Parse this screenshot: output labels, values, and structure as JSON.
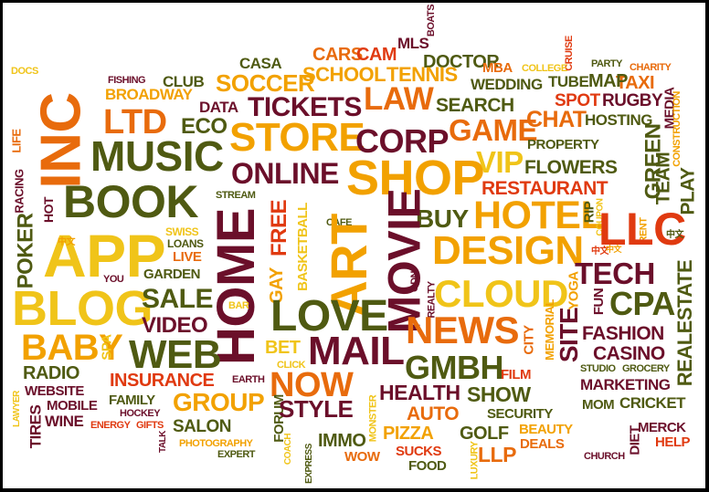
{
  "colors": {
    "orange": "#f2a100",
    "maroon": "#6b0f2a",
    "olive": "#4f5a12",
    "red_orange": "#e03a10",
    "yellow": "#f0c419",
    "dark_orange": "#e86b0c",
    "frame": "#000000",
    "background": "#ffffff"
  },
  "words": {
    "docs": "DOCS",
    "fishing": "FISHING",
    "broadway": "BROADWAY",
    "club": "CLUB",
    "casa": "CASA",
    "cars": "CARS",
    "cam": "CAM",
    "mls": "MLS",
    "boats": "BOATS",
    "doctor": "DOCTOR",
    "cruise": "CRUISE",
    "party": "PARTY",
    "charity": "CHARITY",
    "soccer": "SOCCER",
    "school": "SCHOOL",
    "tennis": "TENNIS",
    "mba": "MBA",
    "college": "COLLEGE",
    "taxi": "TAXI",
    "wedding": "WEDDING",
    "tube": "TUBE",
    "map": "MAP",
    "media": "MEDIA",
    "inc": "INC",
    "ltd": "LTD",
    "eco": "ECO",
    "data": "DATA",
    "tickets": "TICKETS",
    "law": "LAW",
    "search": "SEARCH",
    "spot": "SPOT",
    "rugby": "RUGBY",
    "construction": "CONSTRUCTION",
    "life": "LIFE",
    "racing": "RACING",
    "music": "MUSIC",
    "store": "STORE",
    "corp": "CORP",
    "game": "GAME",
    "chat": "CHAT",
    "hosting": "HOSTING",
    "property": "PROPERTY",
    "green": "GREEN",
    "team": "TEAM",
    "play": "PLAY",
    "hot": "HOT",
    "book": "BOOK",
    "online": "ONLINE",
    "shop": "SHOP",
    "vip": "VIP",
    "flowers": "FLOWERS",
    "restaurant": "RESTAURANT",
    "stream": "STREAM",
    "free": "FREE",
    "cafe": "CAFE",
    "buy": "BUY",
    "hotel": "HOTEL",
    "rip": "RIP",
    "coupon": "COUPON",
    "rent": "RENT",
    "poker": "POKER",
    "app": "APP",
    "swiss": "SWISS",
    "loans": "LOANS",
    "live": "LIVE",
    "home": "HOME",
    "gay": "GAY",
    "basketball": "BASKETBALL",
    "art": "ART",
    "movie": "MOVIE",
    "design": "DESIGN",
    "llc": "LLC",
    "tech": "TECH",
    "you": "YOU",
    "garden": "GARDEN",
    "gdn": "GDN",
    "realty": "REALTY",
    "cloud": "CLOUD",
    "yoga": "YOGA",
    "fun": "FUN",
    "cpa": "CPA",
    "realestate": "REALESTATE",
    "blog": "BLOG",
    "sale": "SALE",
    "bar": "BAR",
    "love": "LOVE",
    "baby": "BABY",
    "spa": "SPA",
    "video": "VIDEO",
    "news": "NEWS",
    "city": "CITY",
    "memorial": "MEMORIAL",
    "site": "SITE",
    "fashion": "FASHION",
    "casino": "CASINO",
    "web": "WEB",
    "bet": "BET",
    "click": "CLICK",
    "mail": "MAIL",
    "gmbh": "GMBH",
    "studio": "STUDIO",
    "grocery": "GROCERY",
    "radio": "RADIO",
    "insurance": "INSURANCE",
    "earth": "EARTH",
    "now": "NOW",
    "film": "FILM",
    "marketing": "MARKETING",
    "lawyer": "LAWYER",
    "website": "WEBSITE",
    "mobile": "MOBILE",
    "family": "FAMILY",
    "group": "GROUP",
    "health": "HEALTH",
    "show": "SHOW",
    "mom": "MOM",
    "cricket": "CRICKET",
    "tires": "TIRES",
    "wine": "WINE",
    "hockey": "HOCKEY",
    "energy": "ENERGY",
    "gifts": "GIFTS",
    "forum": "FORUM",
    "style": "STYLE",
    "auto": "AUTO",
    "security": "SECURITY",
    "merck": "MERCK",
    "salon": "SALON",
    "monster": "MONSTER",
    "beauty": "BEAUTY",
    "diet": "DIET",
    "talk": "TALK",
    "photography": "PHOTOGRAPHY",
    "coach": "COACH",
    "immo": "IMMO",
    "pizza": "PIZZA",
    "golf": "GOLF",
    "help": "HELP",
    "expert": "EXPERT",
    "express": "EXPRESS",
    "wow": "WOW",
    "sucks": "SUCKS",
    "llp": "LLP",
    "deals": "DEALS",
    "church": "CHURCH",
    "food": "FOOD",
    "luxury": "LUXURY",
    "cjk1": "中文",
    "cjk2": "中文",
    "cjk3": "中文",
    "cjk4": "中文"
  }
}
